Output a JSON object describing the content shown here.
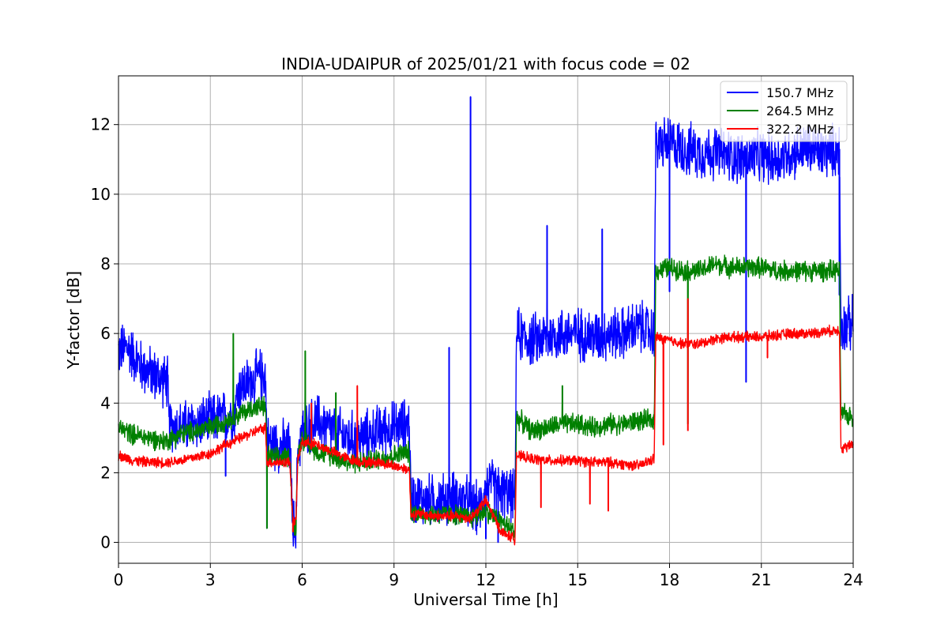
{
  "chart_data": {
    "type": "line",
    "title": "INDIA-UDAIPUR of 2025/01/21 with focus code = 02",
    "xlabel": "Universal Time [h]",
    "ylabel": "Y-factor [dB]",
    "xlim": [
      0,
      24
    ],
    "ylim": [
      -0.6,
      13.4
    ],
    "xticks": [
      0,
      3,
      6,
      9,
      12,
      15,
      18,
      21,
      24
    ],
    "yticks": [
      0,
      2,
      4,
      6,
      8,
      10,
      12
    ],
    "grid": true,
    "legend_position": "top-right",
    "series": [
      {
        "name": "150.7 MHz",
        "color": "#0000ff",
        "noise": 0.9,
        "points": [
          [
            0,
            5.5
          ],
          [
            0.3,
            5.6
          ],
          [
            0.8,
            5.0
          ],
          [
            1.2,
            4.8
          ],
          [
            1.6,
            4.6
          ],
          [
            1.65,
            3.4
          ],
          [
            2.0,
            3.3
          ],
          [
            2.5,
            3.4
          ],
          [
            3.0,
            3.5
          ],
          [
            3.5,
            3.6
          ],
          [
            3.8,
            3.7
          ],
          [
            3.9,
            4.4
          ],
          [
            4.3,
            4.6
          ],
          [
            4.6,
            4.8
          ],
          [
            4.8,
            4.8
          ],
          [
            4.85,
            2.9
          ],
          [
            5.2,
            2.8
          ],
          [
            5.6,
            2.7
          ],
          [
            5.7,
            0.5
          ],
          [
            5.8,
            0.5
          ],
          [
            5.85,
            2.6
          ],
          [
            6.0,
            3.2
          ],
          [
            6.5,
            3.5
          ],
          [
            7.0,
            3.2
          ],
          [
            7.5,
            3.0
          ],
          [
            8.0,
            3.0
          ],
          [
            8.5,
            3.2
          ],
          [
            9.0,
            3.3
          ],
          [
            9.5,
            3.4
          ],
          [
            9.55,
            1.3
          ],
          [
            10.0,
            1.2
          ],
          [
            10.5,
            1.2
          ],
          [
            11.0,
            1.3
          ],
          [
            11.5,
            1.1
          ],
          [
            11.8,
            0.9
          ],
          [
            12.0,
            1.7
          ],
          [
            12.3,
            1.6
          ],
          [
            12.6,
            1.4
          ],
          [
            12.95,
            1.3
          ],
          [
            13.0,
            6.0
          ],
          [
            13.5,
            5.8
          ],
          [
            14.0,
            5.9
          ],
          [
            14.5,
            6.0
          ],
          [
            15.0,
            6.0
          ],
          [
            15.5,
            5.9
          ],
          [
            16.0,
            6.0
          ],
          [
            16.5,
            6.0
          ],
          [
            17.0,
            6.2
          ],
          [
            17.5,
            6.0
          ],
          [
            17.55,
            11.4
          ],
          [
            18.0,
            11.5
          ],
          [
            18.5,
            11.3
          ],
          [
            19.0,
            11.2
          ],
          [
            19.5,
            11.2
          ],
          [
            20.0,
            11.1
          ],
          [
            20.5,
            11.0
          ],
          [
            21.0,
            11.1
          ],
          [
            21.5,
            11.0
          ],
          [
            22.0,
            11.2
          ],
          [
            22.5,
            11.3
          ],
          [
            23.0,
            11.2
          ],
          [
            23.55,
            11.3
          ],
          [
            23.6,
            6.2
          ],
          [
            24.0,
            6.3
          ]
        ],
        "spikes": [
          [
            11.5,
            12.8
          ],
          [
            10.8,
            5.6
          ],
          [
            14.0,
            9.1
          ],
          [
            15.8,
            9.0
          ],
          [
            18.0,
            7.2
          ],
          [
            20.5,
            4.6
          ],
          [
            23.55,
            7.1
          ],
          [
            5.7,
            0.2
          ],
          [
            12.0,
            0.1
          ],
          [
            12.4,
            0.0
          ],
          [
            3.5,
            1.9
          ],
          [
            4.85,
            0.4
          ]
        ]
      },
      {
        "name": "264.5 MHz",
        "color": "#008000",
        "noise": 0.35,
        "points": [
          [
            0,
            3.3
          ],
          [
            0.5,
            3.1
          ],
          [
            1.0,
            3.0
          ],
          [
            1.5,
            2.9
          ],
          [
            2.0,
            3.1
          ],
          [
            2.5,
            3.2
          ],
          [
            3.0,
            3.3
          ],
          [
            3.5,
            3.5
          ],
          [
            4.0,
            3.7
          ],
          [
            4.5,
            3.9
          ],
          [
            4.8,
            3.9
          ],
          [
            4.85,
            2.5
          ],
          [
            5.2,
            2.4
          ],
          [
            5.6,
            2.5
          ],
          [
            5.7,
            0.4
          ],
          [
            5.8,
            0.5
          ],
          [
            5.85,
            2.4
          ],
          [
            6.0,
            3.0
          ],
          [
            6.5,
            2.6
          ],
          [
            7.0,
            2.5
          ],
          [
            7.5,
            2.3
          ],
          [
            8.0,
            2.3
          ],
          [
            8.5,
            2.4
          ],
          [
            9.0,
            2.5
          ],
          [
            9.5,
            2.6
          ],
          [
            9.55,
            0.9
          ],
          [
            10.0,
            0.8
          ],
          [
            10.5,
            0.8
          ],
          [
            11.0,
            0.8
          ],
          [
            11.5,
            0.7
          ],
          [
            12.0,
            0.9
          ],
          [
            12.5,
            0.6
          ],
          [
            12.95,
            0.3
          ],
          [
            13.0,
            3.6
          ],
          [
            13.5,
            3.2
          ],
          [
            14.0,
            3.3
          ],
          [
            14.5,
            3.4
          ],
          [
            15.0,
            3.4
          ],
          [
            15.5,
            3.3
          ],
          [
            16.0,
            3.4
          ],
          [
            16.5,
            3.4
          ],
          [
            17.0,
            3.5
          ],
          [
            17.5,
            3.5
          ],
          [
            17.55,
            7.8
          ],
          [
            18.0,
            7.9
          ],
          [
            18.5,
            7.8
          ],
          [
            19.0,
            7.8
          ],
          [
            19.5,
            8.0
          ],
          [
            20.0,
            7.9
          ],
          [
            20.5,
            7.9
          ],
          [
            21.0,
            7.9
          ],
          [
            21.5,
            7.8
          ],
          [
            22.0,
            7.8
          ],
          [
            22.5,
            7.8
          ],
          [
            23.0,
            7.8
          ],
          [
            23.55,
            7.8
          ],
          [
            23.6,
            3.7
          ],
          [
            24.0,
            3.6
          ]
        ],
        "spikes": [
          [
            3.75,
            6.0
          ],
          [
            6.1,
            5.5
          ],
          [
            7.1,
            4.3
          ],
          [
            4.85,
            0.4
          ],
          [
            5.7,
            0.3
          ],
          [
            18.6,
            3.4
          ],
          [
            14.5,
            4.5
          ]
        ]
      },
      {
        "name": "322.2 MHz",
        "color": "#ff0000",
        "noise": 0.18,
        "points": [
          [
            0,
            2.5
          ],
          [
            0.5,
            2.35
          ],
          [
            1.0,
            2.3
          ],
          [
            1.5,
            2.3
          ],
          [
            2.0,
            2.35
          ],
          [
            2.5,
            2.45
          ],
          [
            3.0,
            2.55
          ],
          [
            3.5,
            2.8
          ],
          [
            4.0,
            3.0
          ],
          [
            4.5,
            3.2
          ],
          [
            4.8,
            3.3
          ],
          [
            4.85,
            2.3
          ],
          [
            5.2,
            2.3
          ],
          [
            5.6,
            2.3
          ],
          [
            5.7,
            0.6
          ],
          [
            5.8,
            0.6
          ],
          [
            5.85,
            2.3
          ],
          [
            6.0,
            2.9
          ],
          [
            6.5,
            2.8
          ],
          [
            7.0,
            2.6
          ],
          [
            7.5,
            2.4
          ],
          [
            8.0,
            2.3
          ],
          [
            8.5,
            2.3
          ],
          [
            9.0,
            2.2
          ],
          [
            9.5,
            2.1
          ],
          [
            9.55,
            0.8
          ],
          [
            10.0,
            0.8
          ],
          [
            10.5,
            0.75
          ],
          [
            11.0,
            0.75
          ],
          [
            11.5,
            0.7
          ],
          [
            12.0,
            1.2
          ],
          [
            12.5,
            0.3
          ],
          [
            12.95,
            0.1
          ],
          [
            13.0,
            2.5
          ],
          [
            13.5,
            2.4
          ],
          [
            14.0,
            2.35
          ],
          [
            14.5,
            2.35
          ],
          [
            15.0,
            2.35
          ],
          [
            15.5,
            2.3
          ],
          [
            16.0,
            2.3
          ],
          [
            16.5,
            2.25
          ],
          [
            17.0,
            2.2
          ],
          [
            17.5,
            2.4
          ],
          [
            17.55,
            5.9
          ],
          [
            18.0,
            5.8
          ],
          [
            18.5,
            5.7
          ],
          [
            19.0,
            5.7
          ],
          [
            19.5,
            5.85
          ],
          [
            20.0,
            5.9
          ],
          [
            20.5,
            5.9
          ],
          [
            21.0,
            5.9
          ],
          [
            21.5,
            5.95
          ],
          [
            22.0,
            6.0
          ],
          [
            22.5,
            6.0
          ],
          [
            23.0,
            6.05
          ],
          [
            23.55,
            6.1
          ],
          [
            23.6,
            2.7
          ],
          [
            24.0,
            2.8
          ]
        ],
        "spikes": [
          [
            7.8,
            4.5
          ],
          [
            6.3,
            4.0
          ],
          [
            13.8,
            1.0
          ],
          [
            15.4,
            1.1
          ],
          [
            16.0,
            0.9
          ],
          [
            17.8,
            2.8
          ],
          [
            18.6,
            3.2
          ],
          [
            18.6,
            7.0
          ],
          [
            21.2,
            5.3
          ],
          [
            5.7,
            0.3
          ]
        ]
      }
    ]
  }
}
